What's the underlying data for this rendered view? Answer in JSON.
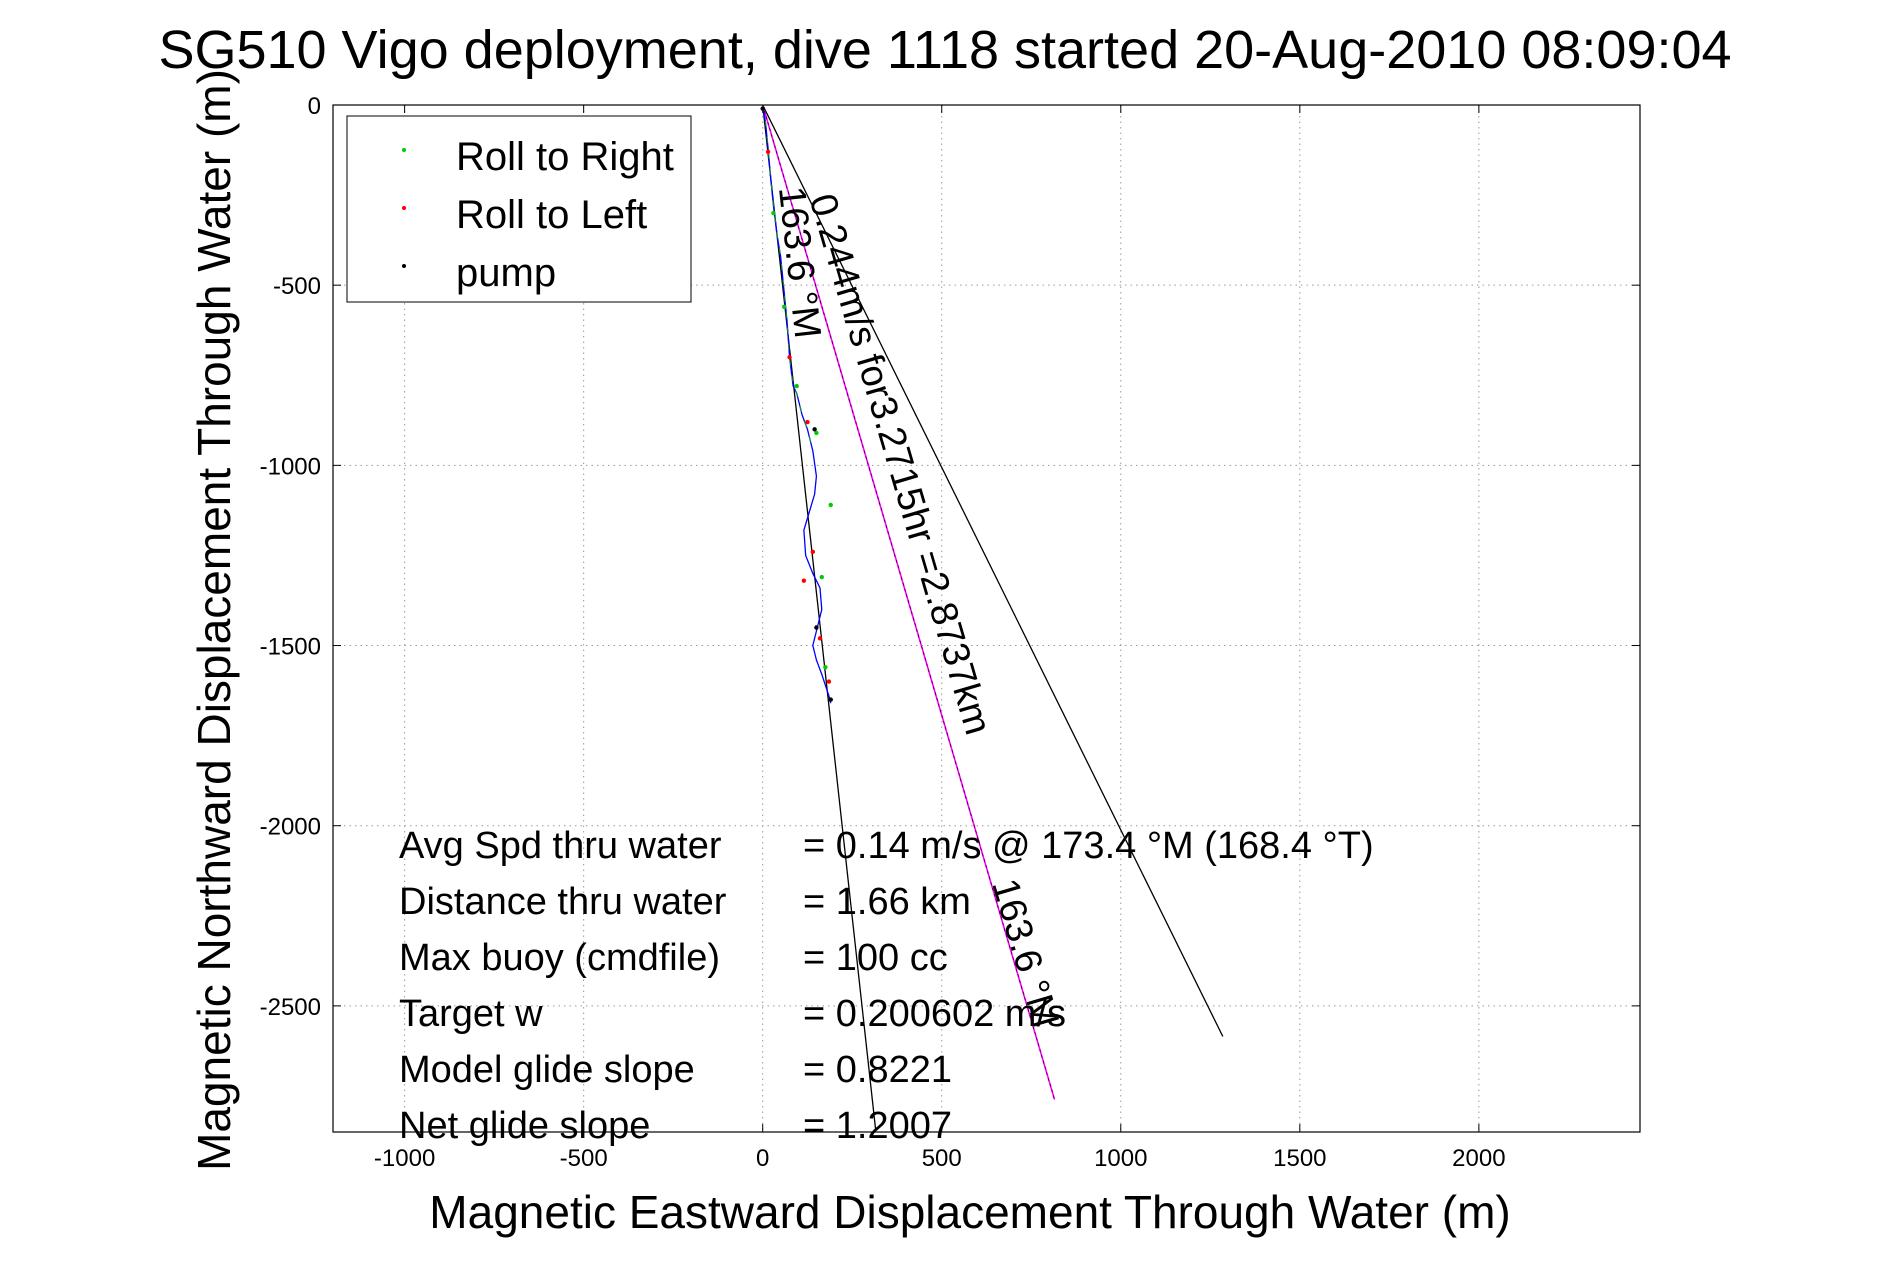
{
  "chart_data": {
    "type": "line",
    "title": "SG510 Vigo deployment, dive 1118 started 20-Aug-2010 08:09:04",
    "xlabel": "Magnetic Eastward Displacement Through Water (m)",
    "ylabel": "Magnetic Northward Displacement Through Water (m)",
    "xlim": [
      -1200,
      2450
    ],
    "ylim": [
      -2850,
      0
    ],
    "xticks": [
      -1000,
      -500,
      0,
      500,
      1000,
      1500,
      2000
    ],
    "yticks": [
      0,
      -500,
      -1000,
      -1500,
      -2000,
      -2500
    ],
    "xtick_labels": [
      "-1000",
      "-500",
      "0",
      "500",
      "1000",
      "1500",
      "2000"
    ],
    "ytick_labels": [
      "0",
      "-500",
      "-1000",
      "-1500",
      "-2000",
      "-2500"
    ],
    "grid": true,
    "legend_position": "top-left",
    "legend": [
      {
        "label": "Roll to Right",
        "color": "#00cc00"
      },
      {
        "label": "Roll to Left",
        "color": "#ff0000"
      },
      {
        "label": "pump",
        "color": "#000000"
      }
    ],
    "colors": {
      "track": "#0000ff",
      "track_green": "#00aa00",
      "mean_line": "#ff00ff",
      "guide_lines": "#000000",
      "roll_right": "#00cc00",
      "roll_left": "#ff0000",
      "pump": "#000000"
    },
    "track": {
      "x": [
        0,
        8,
        15,
        22,
        30,
        40,
        50,
        60,
        68,
        75,
        85,
        95,
        110,
        125,
        140,
        150,
        145,
        130,
        115,
        120,
        140,
        160,
        165,
        150,
        140,
        150,
        165,
        175,
        185,
        190
      ],
      "y": [
        0,
        -50,
        -120,
        -200,
        -280,
        -360,
        -420,
        -520,
        -600,
        -700,
        -780,
        -800,
        -860,
        -900,
        -960,
        -1030,
        -1080,
        -1130,
        -1180,
        -1250,
        -1300,
        -1340,
        -1400,
        -1460,
        -1500,
        -1540,
        -1580,
        -1610,
        -1640,
        -1660
      ]
    },
    "roll_right_points": {
      "x": [
        30,
        60,
        95,
        150,
        190,
        165,
        175
      ],
      "y": [
        -300,
        -560,
        -780,
        -910,
        -1110,
        -1310,
        -1560
      ]
    },
    "roll_left_points": {
      "x": [
        15,
        75,
        125,
        140,
        115,
        160,
        185
      ],
      "y": [
        -130,
        -700,
        -880,
        -1240,
        -1320,
        -1480,
        -1600
      ]
    },
    "pump_points": {
      "x": [
        0,
        145,
        150,
        190
      ],
      "y": [
        -10,
        -900,
        -1450,
        -1650
      ]
    },
    "mean_line": {
      "x": [
        0,
        815
      ],
      "y": [
        0,
        -2760
      ]
    },
    "guide_line_163": {
      "x": [
        0,
        315
      ],
      "y": [
        0,
        -2840
      ]
    },
    "guide_line_wide": {
      "x": [
        0,
        1285
      ],
      "y": [
        0,
        -2585
      ]
    },
    "annotations": [
      {
        "text": "163.6 °M",
        "x": 45,
        "y": -230
      },
      {
        "text": "0.244m/s for3.2715hr =2.8737km",
        "x": 130,
        "y": -260
      },
      {
        "text": "163.6 °M",
        "x": 640,
        "y": -2160
      }
    ],
    "stats": [
      {
        "label": "Avg Spd thru water",
        "value": "=  0.14 m/s @ 173.4 °M (168.4 °T)"
      },
      {
        "label": "Distance thru water",
        "value": "=  1.66 km"
      },
      {
        "label": "Max buoy (cmdfile)",
        "value": "= 100 cc"
      },
      {
        "label": "Target w",
        "value": "= 0.200602 m/s"
      },
      {
        "label": "Model glide slope",
        "value": "= 0.8221"
      },
      {
        "label": "Net glide slope",
        "value": "= 1.2007"
      }
    ]
  }
}
